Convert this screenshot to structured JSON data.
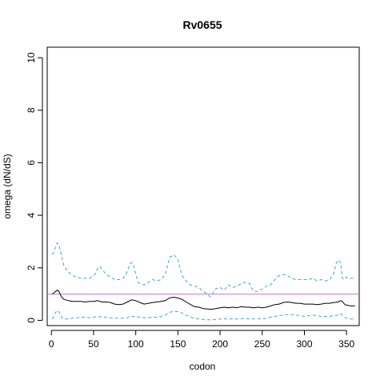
{
  "chart_data": {
    "type": "line",
    "title": "Rv0655",
    "xlabel": "codon",
    "ylabel": "omega (dN/dS)",
    "xlim": [
      -5,
      365
    ],
    "ylim": [
      -0.2,
      10.4
    ],
    "xticks": [
      0,
      50,
      100,
      150,
      200,
      250,
      300,
      350
    ],
    "yticks": [
      0,
      2,
      4,
      6,
      8,
      10
    ],
    "reference_line": {
      "y": 1,
      "color": "#cc79c6"
    },
    "colors": {
      "estimate": "#000000",
      "ci": "#3aa6e0"
    },
    "series": [
      {
        "role": "upper",
        "style": "dashed",
        "x": [
          1,
          3,
          5,
          7,
          9,
          11,
          13,
          15,
          20,
          25,
          30,
          35,
          40,
          45,
          50,
          53,
          55,
          57,
          60,
          65,
          70,
          75,
          80,
          85,
          90,
          93,
          95,
          97,
          100,
          103,
          105,
          110,
          115,
          120,
          125,
          130,
          135,
          138,
          140,
          143,
          145,
          148,
          150,
          152,
          155,
          160,
          165,
          170,
          175,
          180,
          185,
          188,
          190,
          192,
          195,
          200,
          205,
          210,
          215,
          220,
          225,
          230,
          235,
          238,
          240,
          245,
          250,
          255,
          260,
          265,
          270,
          275,
          280,
          285,
          290,
          295,
          300,
          305,
          310,
          315,
          320,
          325,
          330,
          335,
          338,
          340,
          343,
          345,
          348,
          350,
          355,
          360
        ],
        "y": [
          2.5,
          2.6,
          2.8,
          2.95,
          2.85,
          2.6,
          2.3,
          2.05,
          1.85,
          1.7,
          1.65,
          1.6,
          1.6,
          1.6,
          1.7,
          1.8,
          2.0,
          2.05,
          1.95,
          1.75,
          1.65,
          1.55,
          1.55,
          1.6,
          1.85,
          2.15,
          2.2,
          2.15,
          1.75,
          1.45,
          1.4,
          1.35,
          1.45,
          1.55,
          1.5,
          1.55,
          1.75,
          2.1,
          2.4,
          2.45,
          2.5,
          2.4,
          2.3,
          2.05,
          1.7,
          1.5,
          1.35,
          1.3,
          1.25,
          1.1,
          1.0,
          0.9,
          0.95,
          1.05,
          1.2,
          1.25,
          1.15,
          1.35,
          1.25,
          1.3,
          1.4,
          1.45,
          1.4,
          1.2,
          1.1,
          1.1,
          1.2,
          1.3,
          1.35,
          1.55,
          1.7,
          1.75,
          1.7,
          1.6,
          1.55,
          1.55,
          1.55,
          1.55,
          1.6,
          1.5,
          1.55,
          1.5,
          1.55,
          1.8,
          2.2,
          2.3,
          2.2,
          1.6,
          1.55,
          1.65,
          1.6,
          1.6
        ]
      },
      {
        "role": "estimate",
        "style": "solid",
        "x": [
          1,
          3,
          5,
          7,
          9,
          11,
          13,
          15,
          20,
          25,
          30,
          35,
          40,
          45,
          50,
          55,
          60,
          65,
          70,
          75,
          80,
          85,
          90,
          95,
          100,
          105,
          110,
          115,
          120,
          125,
          130,
          135,
          140,
          145,
          150,
          155,
          160,
          165,
          170,
          175,
          180,
          185,
          190,
          195,
          200,
          205,
          210,
          215,
          220,
          225,
          230,
          235,
          240,
          245,
          250,
          255,
          260,
          265,
          270,
          275,
          280,
          285,
          290,
          295,
          300,
          305,
          310,
          315,
          320,
          325,
          330,
          335,
          340,
          343,
          345,
          348,
          350,
          355,
          360
        ],
        "y": [
          1.0,
          1.05,
          1.1,
          1.15,
          1.1,
          0.95,
          0.85,
          0.8,
          0.75,
          0.72,
          0.72,
          0.72,
          0.7,
          0.72,
          0.72,
          0.75,
          0.7,
          0.7,
          0.68,
          0.62,
          0.6,
          0.62,
          0.7,
          0.78,
          0.75,
          0.68,
          0.62,
          0.65,
          0.68,
          0.7,
          0.72,
          0.75,
          0.85,
          0.88,
          0.85,
          0.8,
          0.7,
          0.6,
          0.52,
          0.5,
          0.45,
          0.43,
          0.42,
          0.45,
          0.48,
          0.5,
          0.48,
          0.5,
          0.48,
          0.52,
          0.5,
          0.5,
          0.48,
          0.5,
          0.48,
          0.5,
          0.55,
          0.6,
          0.62,
          0.68,
          0.7,
          0.68,
          0.65,
          0.65,
          0.62,
          0.62,
          0.62,
          0.6,
          0.62,
          0.65,
          0.65,
          0.68,
          0.7,
          0.75,
          0.72,
          0.6,
          0.58,
          0.55,
          0.55
        ]
      },
      {
        "role": "lower",
        "style": "dashed",
        "x": [
          1,
          3,
          5,
          7,
          9,
          11,
          13,
          15,
          20,
          25,
          30,
          35,
          40,
          45,
          50,
          55,
          60,
          65,
          70,
          75,
          80,
          85,
          90,
          95,
          100,
          105,
          110,
          115,
          120,
          125,
          130,
          135,
          140,
          145,
          150,
          155,
          160,
          165,
          170,
          175,
          180,
          185,
          190,
          195,
          200,
          205,
          210,
          215,
          220,
          225,
          230,
          235,
          240,
          245,
          250,
          255,
          260,
          265,
          270,
          275,
          280,
          285,
          290,
          295,
          300,
          305,
          310,
          315,
          320,
          325,
          330,
          335,
          340,
          343,
          345,
          348,
          350,
          355,
          360
        ],
        "y": [
          0.05,
          0.15,
          0.3,
          0.38,
          0.32,
          0.18,
          0.08,
          0.05,
          0.05,
          0.08,
          0.1,
          0.12,
          0.12,
          0.1,
          0.12,
          0.15,
          0.12,
          0.12,
          0.1,
          0.08,
          0.08,
          0.08,
          0.1,
          0.15,
          0.15,
          0.12,
          0.1,
          0.1,
          0.12,
          0.12,
          0.15,
          0.2,
          0.3,
          0.35,
          0.33,
          0.28,
          0.2,
          0.12,
          0.08,
          0.05,
          0.03,
          0.02,
          0.02,
          0.03,
          0.05,
          0.06,
          0.05,
          0.06,
          0.05,
          0.06,
          0.06,
          0.06,
          0.05,
          0.06,
          0.06,
          0.08,
          0.12,
          0.15,
          0.18,
          0.2,
          0.22,
          0.22,
          0.2,
          0.18,
          0.15,
          0.18,
          0.2,
          0.18,
          0.15,
          0.15,
          0.15,
          0.18,
          0.2,
          0.25,
          0.2,
          0.12,
          0.08,
          0.05,
          0.05
        ]
      }
    ]
  }
}
